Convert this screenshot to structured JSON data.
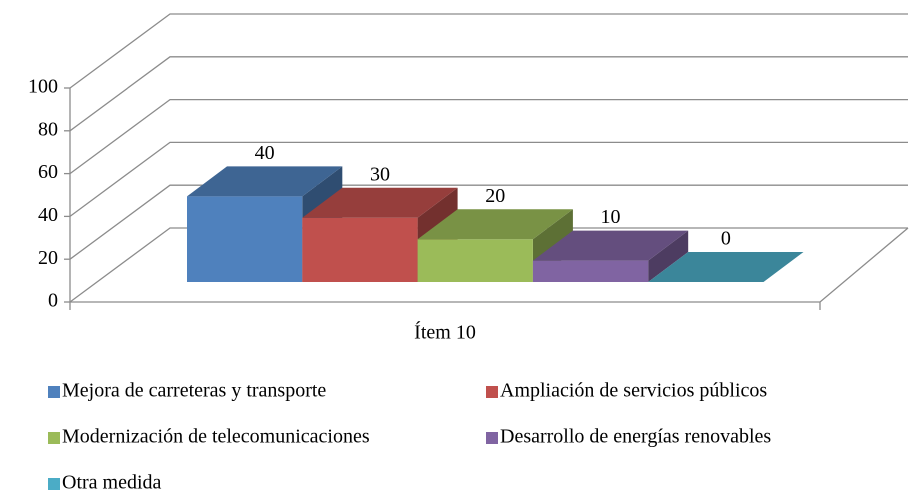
{
  "chart_data": {
    "type": "bar3d",
    "categories": [
      "Ítem 10"
    ],
    "series": [
      {
        "name": "Mejora de carreteras y transporte",
        "color": "#4f81bd",
        "values": [
          40
        ]
      },
      {
        "name": "Ampliación de servicios públicos",
        "color": "#c0504d",
        "values": [
          30
        ]
      },
      {
        "name": "Modernización de telecomunicaciones",
        "color": "#9bbb59",
        "values": [
          20
        ]
      },
      {
        "name": "Desarrollo de energías renovables",
        "color": "#8064a2",
        "values": [
          10
        ]
      },
      {
        "name": "Otra medida",
        "color": "#4bacc6",
        "values": [
          0
        ]
      }
    ],
    "ylim": [
      0,
      100
    ],
    "yticks": [
      0,
      20,
      40,
      60,
      80,
      100
    ],
    "grid": true,
    "data_labels": true,
    "legend": "bottom"
  }
}
